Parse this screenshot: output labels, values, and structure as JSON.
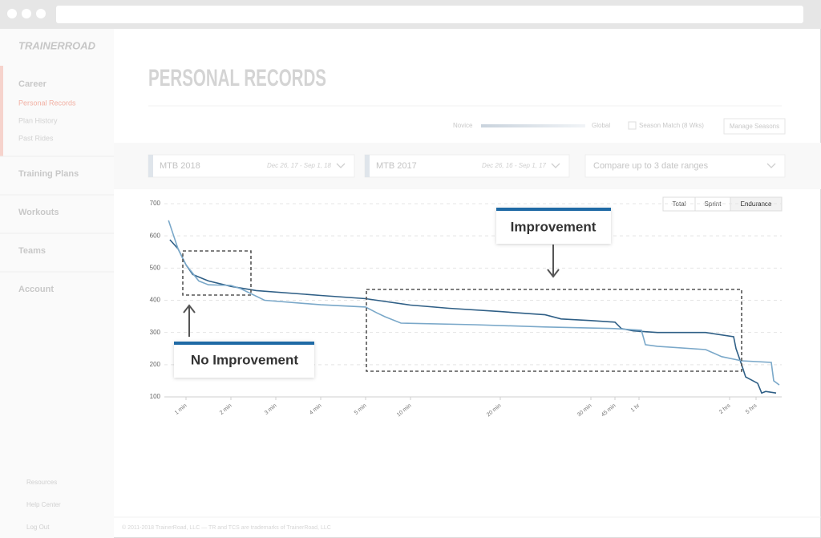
{
  "sidebar": {
    "logo": "TRAINERROAD",
    "career": {
      "label": "Career",
      "items": [
        "Personal Records",
        "Plan History",
        "Past Rides"
      ]
    },
    "sections": [
      "Training Plans",
      "Workouts",
      "Teams",
      "Account"
    ],
    "footer": [
      "Resources",
      "Help Center",
      "Log Out"
    ]
  },
  "header": {
    "title": "PERSONAL RECORDS",
    "slider_min": "Novice",
    "slider_max": "Global",
    "season_match": "Season Match (8 Wks)",
    "manage": "Manage Seasons"
  },
  "ranges": [
    {
      "name": "MTB 2018",
      "dates": "Dec 26, 17 - Sep 1, 18"
    },
    {
      "name": "MTB 2017",
      "dates": "Dec 26, 16 - Sep 1, 17"
    },
    {
      "name": "Compare up to 3 date ranges"
    }
  ],
  "chart_tabs": {
    "items": [
      "Total",
      "Sprint",
      "Endurance"
    ],
    "active": "Endurance"
  },
  "chart_data": {
    "type": "line",
    "xlim": [
      5,
      21600
    ],
    "ylim": [
      100,
      700
    ],
    "yticks": [
      100,
      200,
      300,
      400,
      500,
      600,
      700
    ],
    "xticks": [
      {
        "value": 60,
        "label": "1 min"
      },
      {
        "value": 120,
        "label": "2 min"
      },
      {
        "value": 180,
        "label": "3 min"
      },
      {
        "value": 240,
        "label": "4 min"
      },
      {
        "value": 300,
        "label": "5 min"
      },
      {
        "value": 600,
        "label": "10 min"
      },
      {
        "value": 1200,
        "label": "20 min"
      },
      {
        "value": 1800,
        "label": "30 min"
      },
      {
        "value": 2700,
        "label": "45 min"
      },
      {
        "value": 3600,
        "label": "1 hr"
      },
      {
        "value": 7200,
        "label": "2 hrs"
      },
      {
        "value": 18000,
        "label": "5 hrs"
      }
    ],
    "grid": true,
    "series": [
      {
        "color": "#2f5f86",
        "x": [
          14,
          37,
          60,
          69,
          90,
          120,
          154,
          240,
          300,
          600,
          857,
          1200,
          1497,
          1603,
          1800,
          2700,
          2940,
          3390,
          4334,
          6248,
          8836,
          9818,
          12108,
          13745,
          18248,
          18868,
          19488,
          21100
        ],
        "values": [
          588,
          560,
          510,
          480,
          460,
          443,
          430,
          415,
          405,
          385,
          375,
          365,
          355,
          342,
          337,
          332,
          312,
          305,
          300,
          300,
          287,
          250,
          200,
          162,
          142,
          112,
          117,
          112
        ]
      },
      {
        "color": "#7aa8c9",
        "x": [
          10,
          37,
          60,
          77,
          90,
          120,
          133,
          165,
          240,
          300,
          375,
          429,
          536,
          1031,
          1497,
          2700,
          3696,
          3855,
          4334,
          6248,
          6886,
          12108,
          20356,
          20728,
          21600
        ],
        "values": [
          648,
          560,
          510,
          460,
          448,
          446,
          436,
          400,
          386,
          379,
          361,
          349,
          329,
          324,
          317,
          312,
          307,
          262,
          257,
          247,
          225,
          212,
          207,
          150,
          137
        ]
      }
    ],
    "annotations": [
      "Improvement",
      "No Improvement"
    ]
  },
  "footer": "© 2011-2018 TrainerRoad, LLC — TR and TCS are trademarks of TrainerRoad, LLC"
}
